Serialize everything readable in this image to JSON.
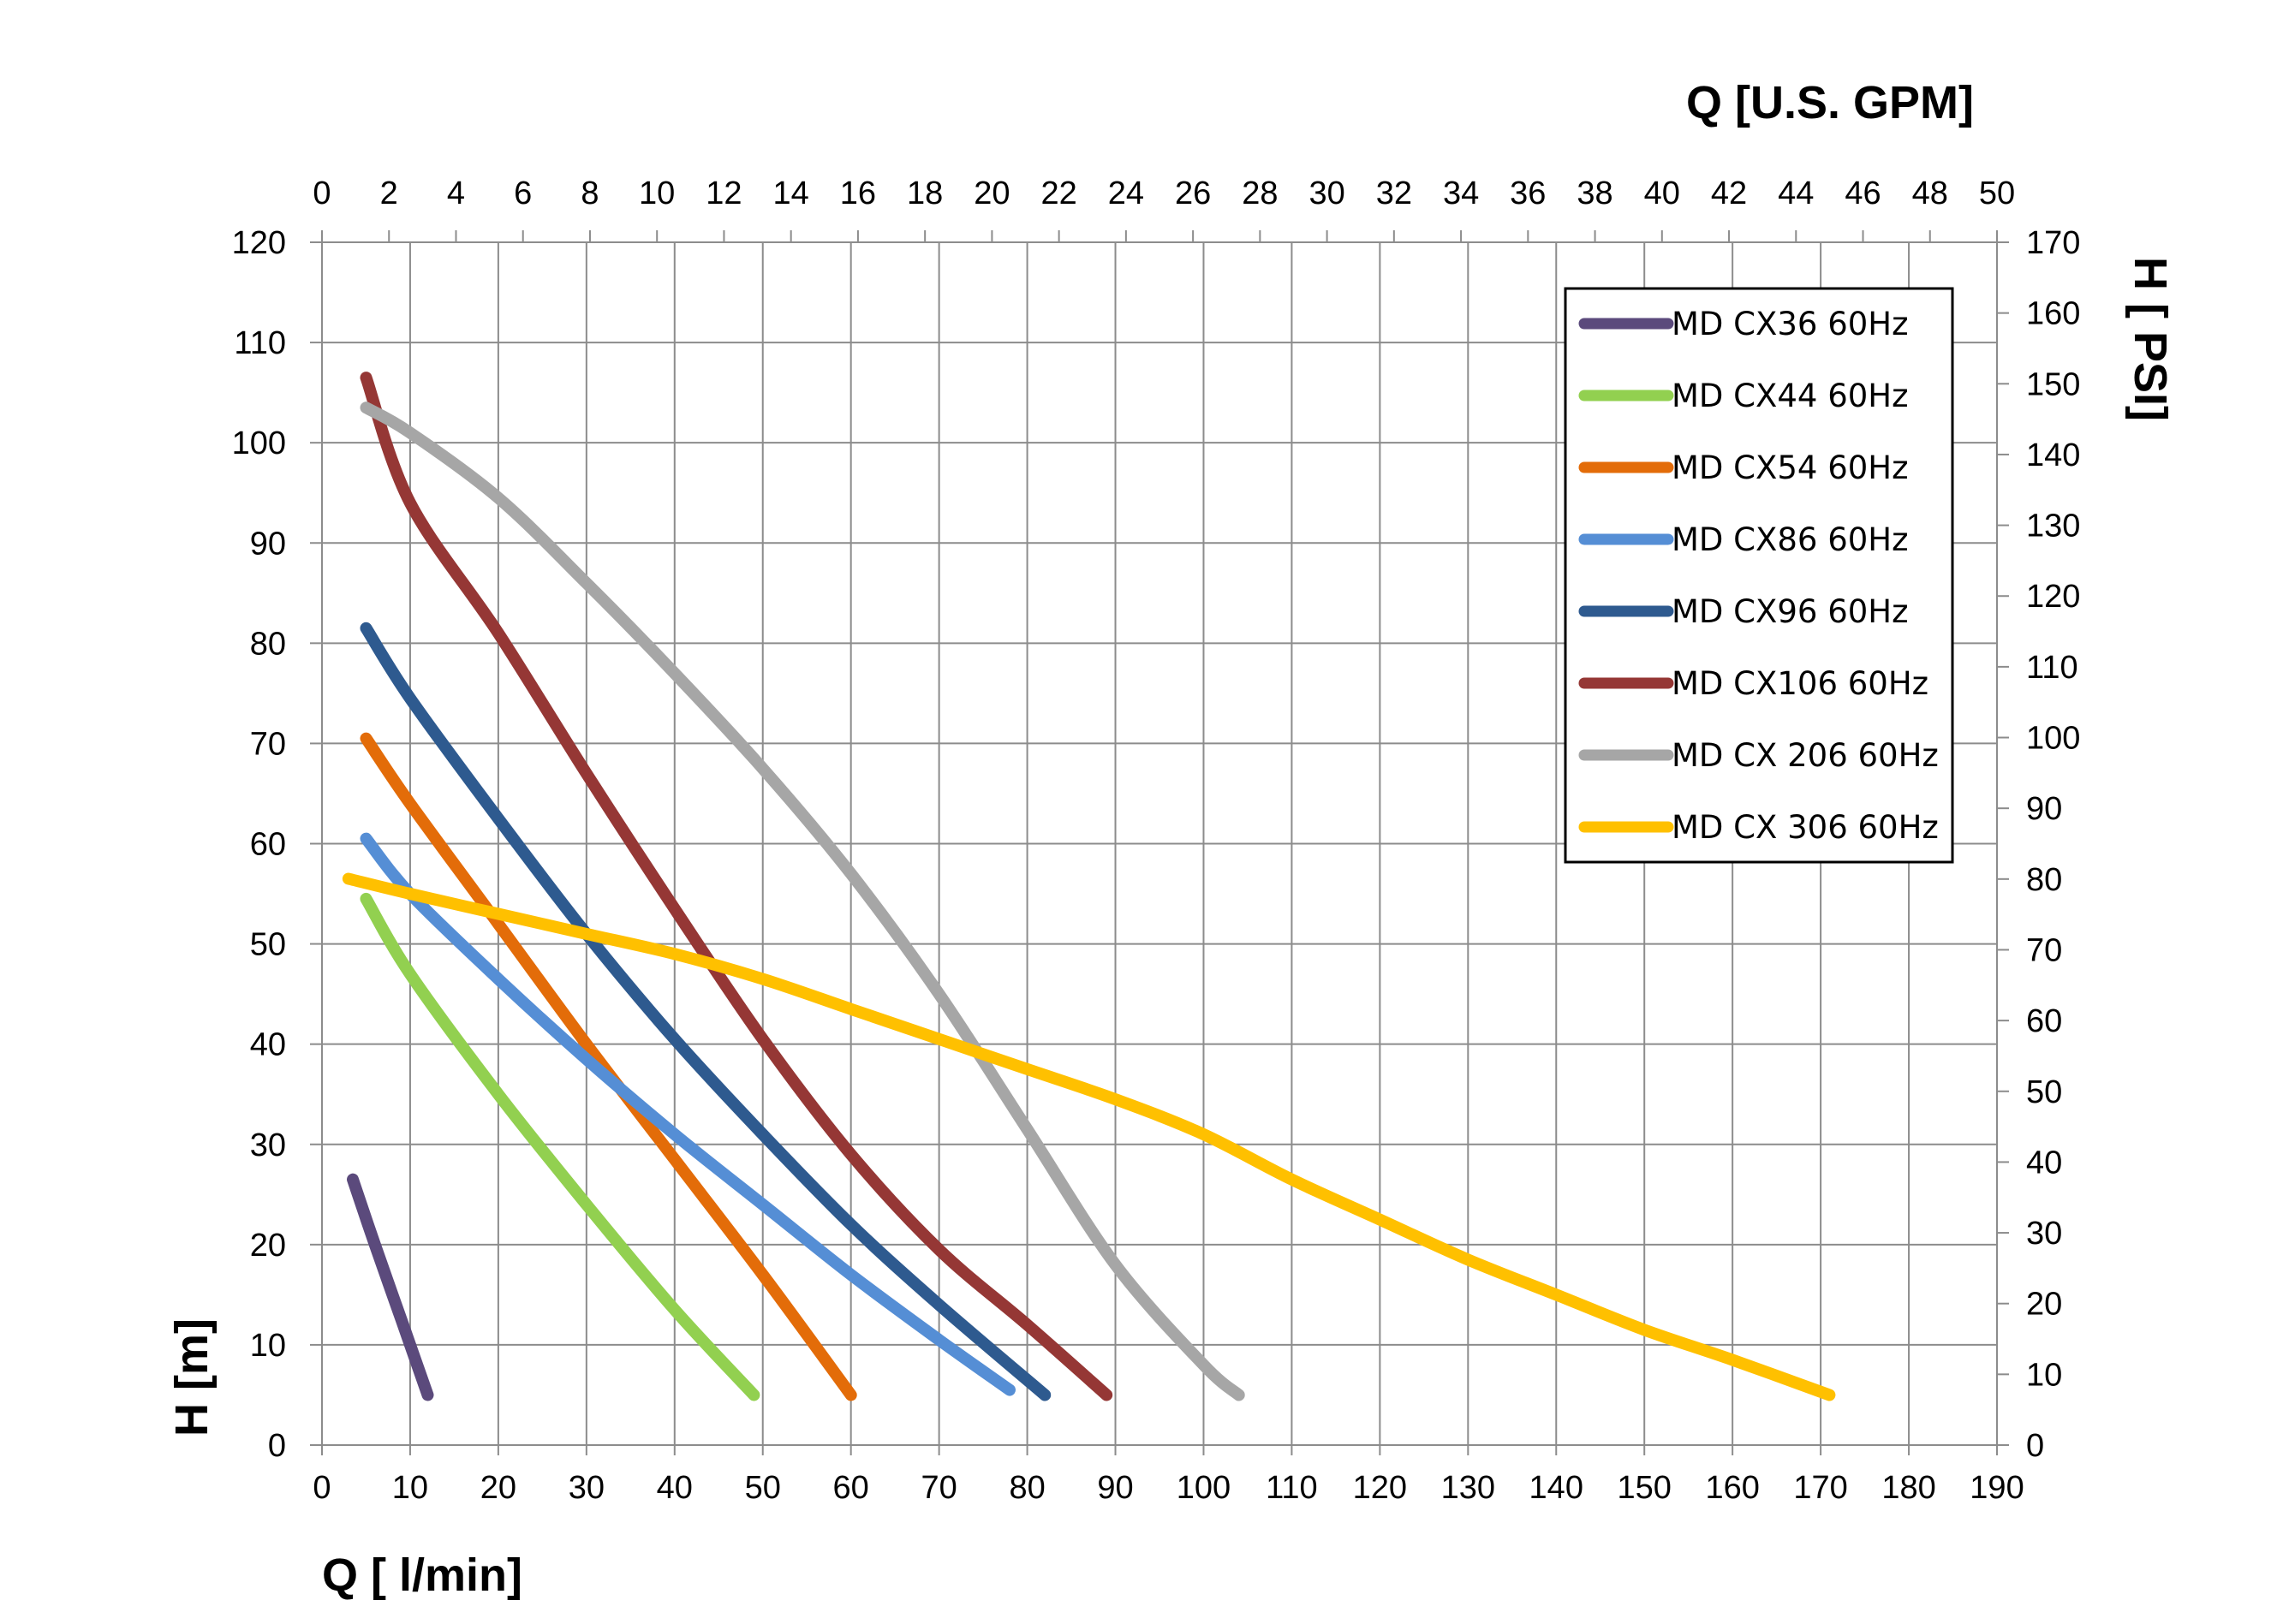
{
  "chart_data": {
    "type": "line",
    "title": "",
    "xlabel": "Q [ l/min]",
    "ylabel": "H [m]",
    "x2label": "Q  [U.S. GPM]",
    "y2label": "H [ PSI]",
    "xlim": [
      0,
      190
    ],
    "ylim": [
      0,
      120
    ],
    "x2lim": [
      0,
      50
    ],
    "y2lim": [
      0,
      170
    ],
    "x_ticks": [
      "0",
      "10",
      "20",
      "30",
      "40",
      "50",
      "60",
      "70",
      "80",
      "90",
      "100",
      "110",
      "120",
      "130",
      "140",
      "150",
      "160",
      "170",
      "180",
      "190"
    ],
    "y_ticks": [
      "0",
      "10",
      "20",
      "30",
      "40",
      "50",
      "60",
      "70",
      "80",
      "90",
      "100",
      "110",
      "120"
    ],
    "x2_ticks": [
      "0",
      "2",
      "4",
      "6",
      "8",
      "10",
      "12",
      "14",
      "16",
      "18",
      "20",
      "22",
      "24",
      "26",
      "28",
      "30",
      "32",
      "34",
      "36",
      "38",
      "40",
      "42",
      "44",
      "46",
      "48",
      "50"
    ],
    "y2_ticks": [
      "0",
      "10",
      "20",
      "30",
      "40",
      "50",
      "60",
      "70",
      "80",
      "90",
      "100",
      "110",
      "120",
      "130",
      "140",
      "150",
      "160",
      "170"
    ],
    "grid": true,
    "legend_position": "top-right",
    "series": [
      {
        "name": "MD CX36 60Hz",
        "color": "#5b4a7c",
        "points": [
          [
            3.5,
            26.5
          ],
          [
            6,
            20
          ],
          [
            9,
            12.5
          ],
          [
            12,
            5
          ]
        ]
      },
      {
        "name": "MD CX44 60Hz",
        "color": "#92d050",
        "points": [
          [
            5,
            54.5
          ],
          [
            10,
            47
          ],
          [
            20,
            35
          ],
          [
            30,
            24
          ],
          [
            40,
            13.5
          ],
          [
            49,
            5
          ]
        ]
      },
      {
        "name": "MD CX54 60Hz",
        "color": "#e36c09",
        "points": [
          [
            5,
            70.5
          ],
          [
            10,
            64
          ],
          [
            20,
            52
          ],
          [
            30,
            40
          ],
          [
            40,
            28.5
          ],
          [
            50,
            17
          ],
          [
            60,
            5
          ]
        ]
      },
      {
        "name": "MD CX86 60Hz",
        "color": "#558ed5",
        "points": [
          [
            5,
            60.5
          ],
          [
            10,
            55
          ],
          [
            20,
            46.5
          ],
          [
            30,
            38.5
          ],
          [
            40,
            31
          ],
          [
            50,
            24
          ],
          [
            60,
            17
          ],
          [
            70,
            10.5
          ],
          [
            78,
            5.5
          ]
        ]
      },
      {
        "name": "MD CX96 60Hz",
        "color": "#2e5a8f",
        "points": [
          [
            5,
            81.5
          ],
          [
            10,
            74.5
          ],
          [
            20,
            62.5
          ],
          [
            30,
            51
          ],
          [
            40,
            40.5
          ],
          [
            50,
            31
          ],
          [
            60,
            22
          ],
          [
            70,
            14
          ],
          [
            82,
            5
          ]
        ]
      },
      {
        "name": "MD CX106 60Hz",
        "color": "#953735",
        "points": [
          [
            5,
            106.5
          ],
          [
            10,
            94
          ],
          [
            20,
            81
          ],
          [
            30,
            67
          ],
          [
            40,
            53.5
          ],
          [
            50,
            40.5
          ],
          [
            60,
            29
          ],
          [
            70,
            19.5
          ],
          [
            80,
            12
          ],
          [
            89,
            5
          ]
        ]
      },
      {
        "name": "MD CX 206 60Hz",
        "color": "#a6a6a6",
        "points": [
          [
            5,
            103.5
          ],
          [
            10,
            101
          ],
          [
            20,
            94.5
          ],
          [
            30,
            86
          ],
          [
            40,
            77
          ],
          [
            50,
            67.5
          ],
          [
            60,
            57
          ],
          [
            70,
            45
          ],
          [
            80,
            31.5
          ],
          [
            90,
            18
          ],
          [
            100,
            8
          ],
          [
            104,
            5
          ]
        ]
      },
      {
        "name": "MD CX 306 60Hz",
        "color": "#ffc000",
        "points": [
          [
            3,
            56.5
          ],
          [
            10,
            55
          ],
          [
            20,
            53
          ],
          [
            30,
            51
          ],
          [
            40,
            49
          ],
          [
            50,
            46.5
          ],
          [
            60,
            43.5
          ],
          [
            70,
            40.5
          ],
          [
            80,
            37.5
          ],
          [
            90,
            34.5
          ],
          [
            100,
            31
          ],
          [
            110,
            26.5
          ],
          [
            120,
            22.5
          ],
          [
            130,
            18.5
          ],
          [
            140,
            15
          ],
          [
            150,
            11.5
          ],
          [
            160,
            8.5
          ],
          [
            171,
            5
          ]
        ]
      }
    ]
  }
}
